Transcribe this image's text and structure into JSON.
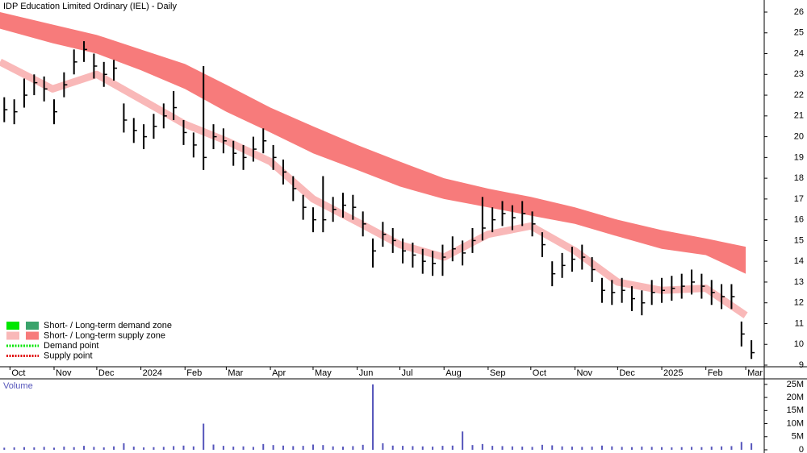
{
  "chart_data": {
    "type": "ohlc",
    "title": "IDP Education Limited Ordinary (IEL) - Daily",
    "x": [
      -4,
      3,
      10,
      17,
      24,
      31,
      38,
      45,
      52,
      59,
      66,
      73,
      80,
      87,
      94,
      101,
      108,
      115,
      122,
      129,
      136,
      143,
      150,
      157,
      164,
      171,
      178,
      185,
      192,
      199,
      206,
      213,
      220,
      227,
      234,
      241,
      248,
      255,
      262,
      269,
      276,
      283,
      290,
      297,
      304,
      311,
      318,
      325,
      332,
      339,
      346,
      353,
      360,
      367,
      374,
      381,
      388,
      395,
      402,
      409,
      416,
      423,
      430,
      437,
      444,
      451,
      458,
      465,
      472,
      479,
      486,
      493,
      500,
      507,
      514,
      521
    ],
    "high": [
      21.9,
      21.8,
      22.8,
      23.0,
      22.9,
      21.8,
      23.1,
      24.2,
      24.6,
      24.0,
      23.6,
      23.7,
      21.6,
      20.9,
      20.6,
      21.1,
      21.6,
      22.2,
      20.8,
      20.2,
      23.4,
      20.6,
      20.4,
      19.8,
      19.6,
      20.0,
      20.4,
      19.6,
      18.9,
      18.1,
      17.2,
      16.6,
      18.1,
      17.1,
      17.3,
      17.2,
      16.4,
      15.1,
      15.9,
      15.6,
      15.1,
      14.9,
      14.6,
      14.5,
      14.8,
      15.2,
      15.0,
      15.6,
      17.1,
      16.6,
      16.9,
      16.7,
      16.9,
      16.4,
      15.4,
      14.0,
      14.4,
      14.7,
      14.8,
      14.2,
      13.2,
      13.1,
      13.2,
      12.8,
      12.6,
      13.1,
      13.2,
      13.3,
      13.4,
      13.6,
      13.4,
      13.1,
      12.9,
      12.9,
      11.1,
      10.2
    ],
    "low": [
      20.7,
      20.6,
      21.4,
      22.0,
      21.7,
      20.6,
      21.9,
      23.0,
      23.6,
      22.8,
      22.4,
      22.7,
      20.2,
      19.7,
      19.4,
      19.9,
      20.4,
      20.8,
      19.6,
      19.0,
      18.4,
      19.4,
      19.2,
      18.6,
      18.4,
      18.8,
      19.2,
      18.4,
      17.7,
      16.9,
      16.0,
      15.4,
      15.4,
      15.9,
      16.1,
      16.0,
      15.2,
      13.7,
      14.7,
      14.4,
      13.9,
      13.7,
      13.4,
      13.3,
      13.3,
      14.0,
      13.8,
      14.4,
      15.0,
      15.4,
      15.7,
      15.5,
      15.7,
      15.2,
      14.2,
      12.8,
      13.2,
      13.5,
      13.6,
      13.0,
      12.0,
      11.9,
      12.0,
      11.6,
      11.4,
      11.9,
      12.0,
      12.1,
      12.2,
      12.4,
      12.2,
      11.9,
      11.7,
      11.7,
      9.9,
      9.3
    ],
    "close": [
      21.3,
      21.2,
      22.0,
      22.6,
      22.3,
      21.2,
      22.5,
      23.6,
      24.2,
      23.4,
      23.0,
      23.3,
      20.8,
      20.3,
      20.0,
      20.5,
      21.0,
      21.4,
      20.2,
      19.6,
      19.0,
      20.0,
      19.8,
      19.2,
      19.0,
      19.4,
      19.8,
      19.0,
      18.3,
      17.5,
      16.6,
      16.0,
      16.0,
      16.5,
      16.7,
      16.6,
      15.8,
      14.5,
      15.3,
      15.0,
      14.5,
      14.3,
      14.0,
      13.9,
      14.2,
      14.6,
      14.4,
      15.0,
      15.6,
      16.0,
      16.3,
      16.1,
      16.3,
      15.8,
      14.8,
      13.4,
      13.8,
      14.1,
      14.2,
      13.6,
      12.6,
      12.5,
      12.6,
      12.2,
      12.0,
      12.5,
      12.6,
      12.7,
      12.8,
      13.0,
      12.8,
      12.5,
      12.3,
      12.3,
      10.5,
      9.6
    ],
    "bar_color": "#000000",
    "long_band": {
      "color": "#f77b7b",
      "x": [
        -7,
        30,
        61,
        92,
        123,
        152,
        183,
        213,
        244,
        274,
        305,
        336,
        366,
        397,
        427,
        458,
        489,
        517
      ],
      "upper": [
        26.0,
        25.4,
        24.9,
        24.2,
        23.5,
        22.5,
        21.4,
        20.5,
        19.6,
        18.8,
        18.0,
        17.5,
        17.1,
        16.6,
        16.0,
        15.5,
        15.1,
        14.7
      ],
      "lower": [
        25.2,
        24.5,
        24.0,
        23.2,
        22.3,
        21.2,
        20.2,
        19.2,
        18.4,
        17.6,
        17.0,
        16.6,
        16.2,
        15.8,
        15.2,
        14.6,
        14.3,
        13.4
      ]
    },
    "short_band": {
      "color": "#f9b8b8",
      "x": [
        -7,
        30,
        61,
        92,
        123,
        152,
        183,
        213,
        244,
        274,
        305,
        336,
        366,
        397,
        427,
        458,
        489,
        517
      ],
      "values": [
        23.6,
        22.3,
        23.0,
        21.8,
        20.6,
        19.8,
        18.8,
        17.0,
        15.9,
        14.8,
        14.2,
        15.3,
        15.7,
        14.5,
        13.0,
        12.6,
        12.7,
        11.4
      ]
    },
    "xlim": [
      -7,
      530
    ],
    "xticks": [
      {
        "value": 0,
        "label": "Oct"
      },
      {
        "value": 31,
        "label": "Nov"
      },
      {
        "value": 61,
        "label": "Dec"
      },
      {
        "value": 92,
        "label": "2024"
      },
      {
        "value": 123,
        "label": "Feb"
      },
      {
        "value": 152,
        "label": "Mar"
      },
      {
        "value": 183,
        "label": "Apr"
      },
      {
        "value": 213,
        "label": "May"
      },
      {
        "value": 244,
        "label": "Jun"
      },
      {
        "value": 274,
        "label": "Jul"
      },
      {
        "value": 305,
        "label": "Aug"
      },
      {
        "value": 336,
        "label": "Sep"
      },
      {
        "value": 366,
        "label": "Oct"
      },
      {
        "value": 397,
        "label": "Nov"
      },
      {
        "value": 427,
        "label": "Dec"
      },
      {
        "value": 458,
        "label": "2025"
      },
      {
        "value": 489,
        "label": "Feb"
      },
      {
        "value": 517,
        "label": "Mar"
      }
    ],
    "ylim": [
      8.7,
      26.6
    ],
    "yticks": [
      9,
      10,
      11,
      12,
      13,
      14,
      15,
      16,
      17,
      18,
      19,
      20,
      21,
      22,
      23,
      24,
      25,
      26
    ],
    "legend": [
      {
        "name": "Short- / Long-term demand zone",
        "colors": [
          "#00e600",
          "#3aa36b"
        ]
      },
      {
        "name": "Short- / Long-term supply zone",
        "colors": [
          "#f9b8b8",
          "#f77b7b"
        ]
      },
      {
        "name": "Demand point",
        "colors": [
          "#00e600"
        ]
      },
      {
        "name": "Supply point",
        "colors": [
          "#e00000"
        ]
      }
    ],
    "volume": {
      "name": "Volume",
      "color": "#5555bb",
      "ylim": [
        0,
        26500000
      ],
      "yticks": [
        {
          "value": 0,
          "label": "0"
        },
        {
          "value": 5000000,
          "label": "5M"
        },
        {
          "value": 10000000,
          "label": "10M"
        },
        {
          "value": 15000000,
          "label": "15M"
        },
        {
          "value": 20000000,
          "label": "20M"
        },
        {
          "value": 25000000,
          "label": "25M"
        }
      ],
      "values": [
        800000,
        900000,
        1000000,
        900000,
        1100000,
        800000,
        1200000,
        1000000,
        1500000,
        1100000,
        900000,
        1300000,
        2500000,
        1200000,
        900000,
        1000000,
        1100000,
        1400000,
        1600000,
        1300000,
        10000000,
        2000000,
        1500000,
        1200000,
        1300000,
        1100000,
        2200000,
        1800000,
        1600000,
        1400000,
        1500000,
        2000000,
        1800000,
        1300000,
        1200000,
        1400000,
        1900000,
        25000000,
        2500000,
        1600000,
        1500000,
        1400000,
        1300000,
        1200000,
        1500000,
        1600000,
        7000000,
        1800000,
        2200000,
        1500000,
        1400000,
        1300000,
        1200000,
        1100000,
        1900000,
        1700000,
        1300000,
        1200000,
        1100000,
        1200000,
        1600000,
        1300000,
        1100000,
        1000000,
        1200000,
        1100000,
        1000000,
        900000,
        1000000,
        1100000,
        1000000,
        1200000,
        1300000,
        1400000,
        3000000,
        2500000
      ]
    }
  }
}
